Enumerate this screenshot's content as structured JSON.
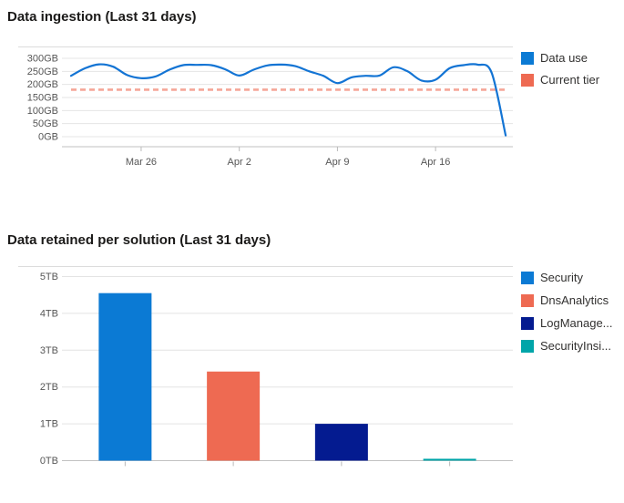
{
  "page": {
    "background": "#ffffff"
  },
  "chart_data": [
    {
      "type": "line",
      "title": "Data ingestion (Last 31 days)",
      "legend_position": "right",
      "legend": [
        {
          "label": "Data use",
          "color": "#0b7ad4"
        },
        {
          "label": "Current tier",
          "color": "#ee6a52"
        }
      ],
      "y_tick_labels": [
        "300GB",
        "250GB",
        "200GB",
        "150GB",
        "100GB",
        "50GB",
        "0GB"
      ],
      "y_tick_values_gb": [
        300,
        250,
        200,
        150,
        100,
        50,
        0
      ],
      "ylim_gb": [
        0,
        342
      ],
      "x_tick_labels": [
        "Mar 26",
        "Apr 2",
        "Apr 9",
        "Apr 16"
      ],
      "x_tick_indices": [
        5,
        12,
        19,
        26
      ],
      "grid": true,
      "series": [
        {
          "name": "Data use",
          "kind": "line",
          "color": "#1374d4",
          "values_gb": [
            233,
            262,
            277,
            268,
            236,
            224,
            230,
            256,
            274,
            275,
            274,
            258,
            234,
            256,
            273,
            276,
            270,
            250,
            233,
            205,
            227,
            233,
            234,
            266,
            250,
            215,
            218,
            262,
            274,
            276,
            245,
            5
          ]
        },
        {
          "name": "Current tier",
          "kind": "threshold",
          "style": "dashed",
          "color": "#f5a698",
          "value_gb": 180
        }
      ]
    },
    {
      "type": "bar",
      "title": "Data retained per solution (Last 31 days)",
      "legend_position": "right",
      "legend": [
        {
          "label": "Security",
          "color": "#0b7ad4"
        },
        {
          "label": "DnsAnalytics",
          "color": "#ee6a52"
        },
        {
          "label": "LogManage...",
          "color": "#041b90"
        },
        {
          "label": "SecurityInsi...",
          "color": "#00a5a9"
        }
      ],
      "categories": [
        "Security",
        "DnsAnalytics",
        "LogManage...",
        "SecurityInsi..."
      ],
      "values_tb": [
        4.55,
        2.42,
        1.0,
        0.05
      ],
      "colors": [
        "#0b7ad4",
        "#ee6a52",
        "#041b90",
        "#00a5a9"
      ],
      "y_tick_labels": [
        "0TB",
        "1TB",
        "2TB",
        "3TB",
        "4TB",
        "5TB"
      ],
      "y_tick_values_tb": [
        0,
        1,
        2,
        3,
        4,
        5
      ],
      "ylim_tb": [
        0,
        5.3
      ],
      "grid": true
    }
  ],
  "theme": {
    "gridline_color": "#e4e4e4",
    "border_color": "#dcdcdc",
    "axis_color": "#c2c2c2",
    "tick_color": "#b9b9b9",
    "axis_label_color": "#565656",
    "title_color": "#1b1a19",
    "legend_text_color": "#323130"
  }
}
